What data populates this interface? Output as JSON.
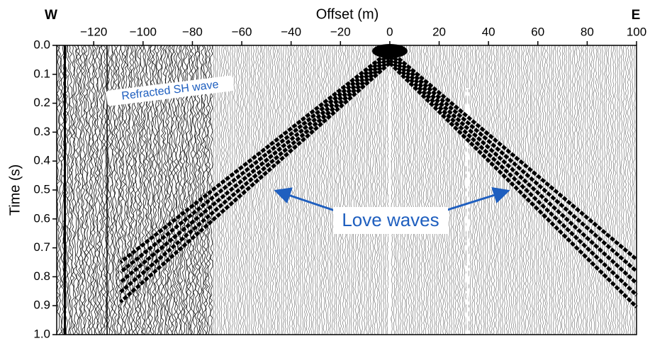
{
  "chart_data": {
    "type": "seismogram",
    "title": "Offset (m)",
    "y_label": "Time (s)",
    "left_label": "W",
    "right_label": "E",
    "xlim": [
      -135,
      100
    ],
    "xticks": [
      {
        "value": -120,
        "label": "−120"
      },
      {
        "value": -100,
        "label": "−100"
      },
      {
        "value": -80,
        "label": "−80"
      },
      {
        "value": -60,
        "label": "−60"
      },
      {
        "value": -40,
        "label": "−40"
      },
      {
        "value": -20,
        "label": "−20"
      },
      0,
      20,
      40,
      60,
      80,
      100
    ],
    "ylim": [
      0,
      1
    ],
    "yticks": [
      {
        "value": 0,
        "label": "0.0"
      },
      0.1,
      0.2,
      0.3,
      0.4,
      0.5,
      0.6,
      0.7,
      0.8,
      0.9,
      {
        "value": 1,
        "label": "1.0"
      }
    ],
    "annotations": [
      "Refracted SH wave",
      "Love waves"
    ],
    "annotation_color": "#1f5fbf"
  }
}
